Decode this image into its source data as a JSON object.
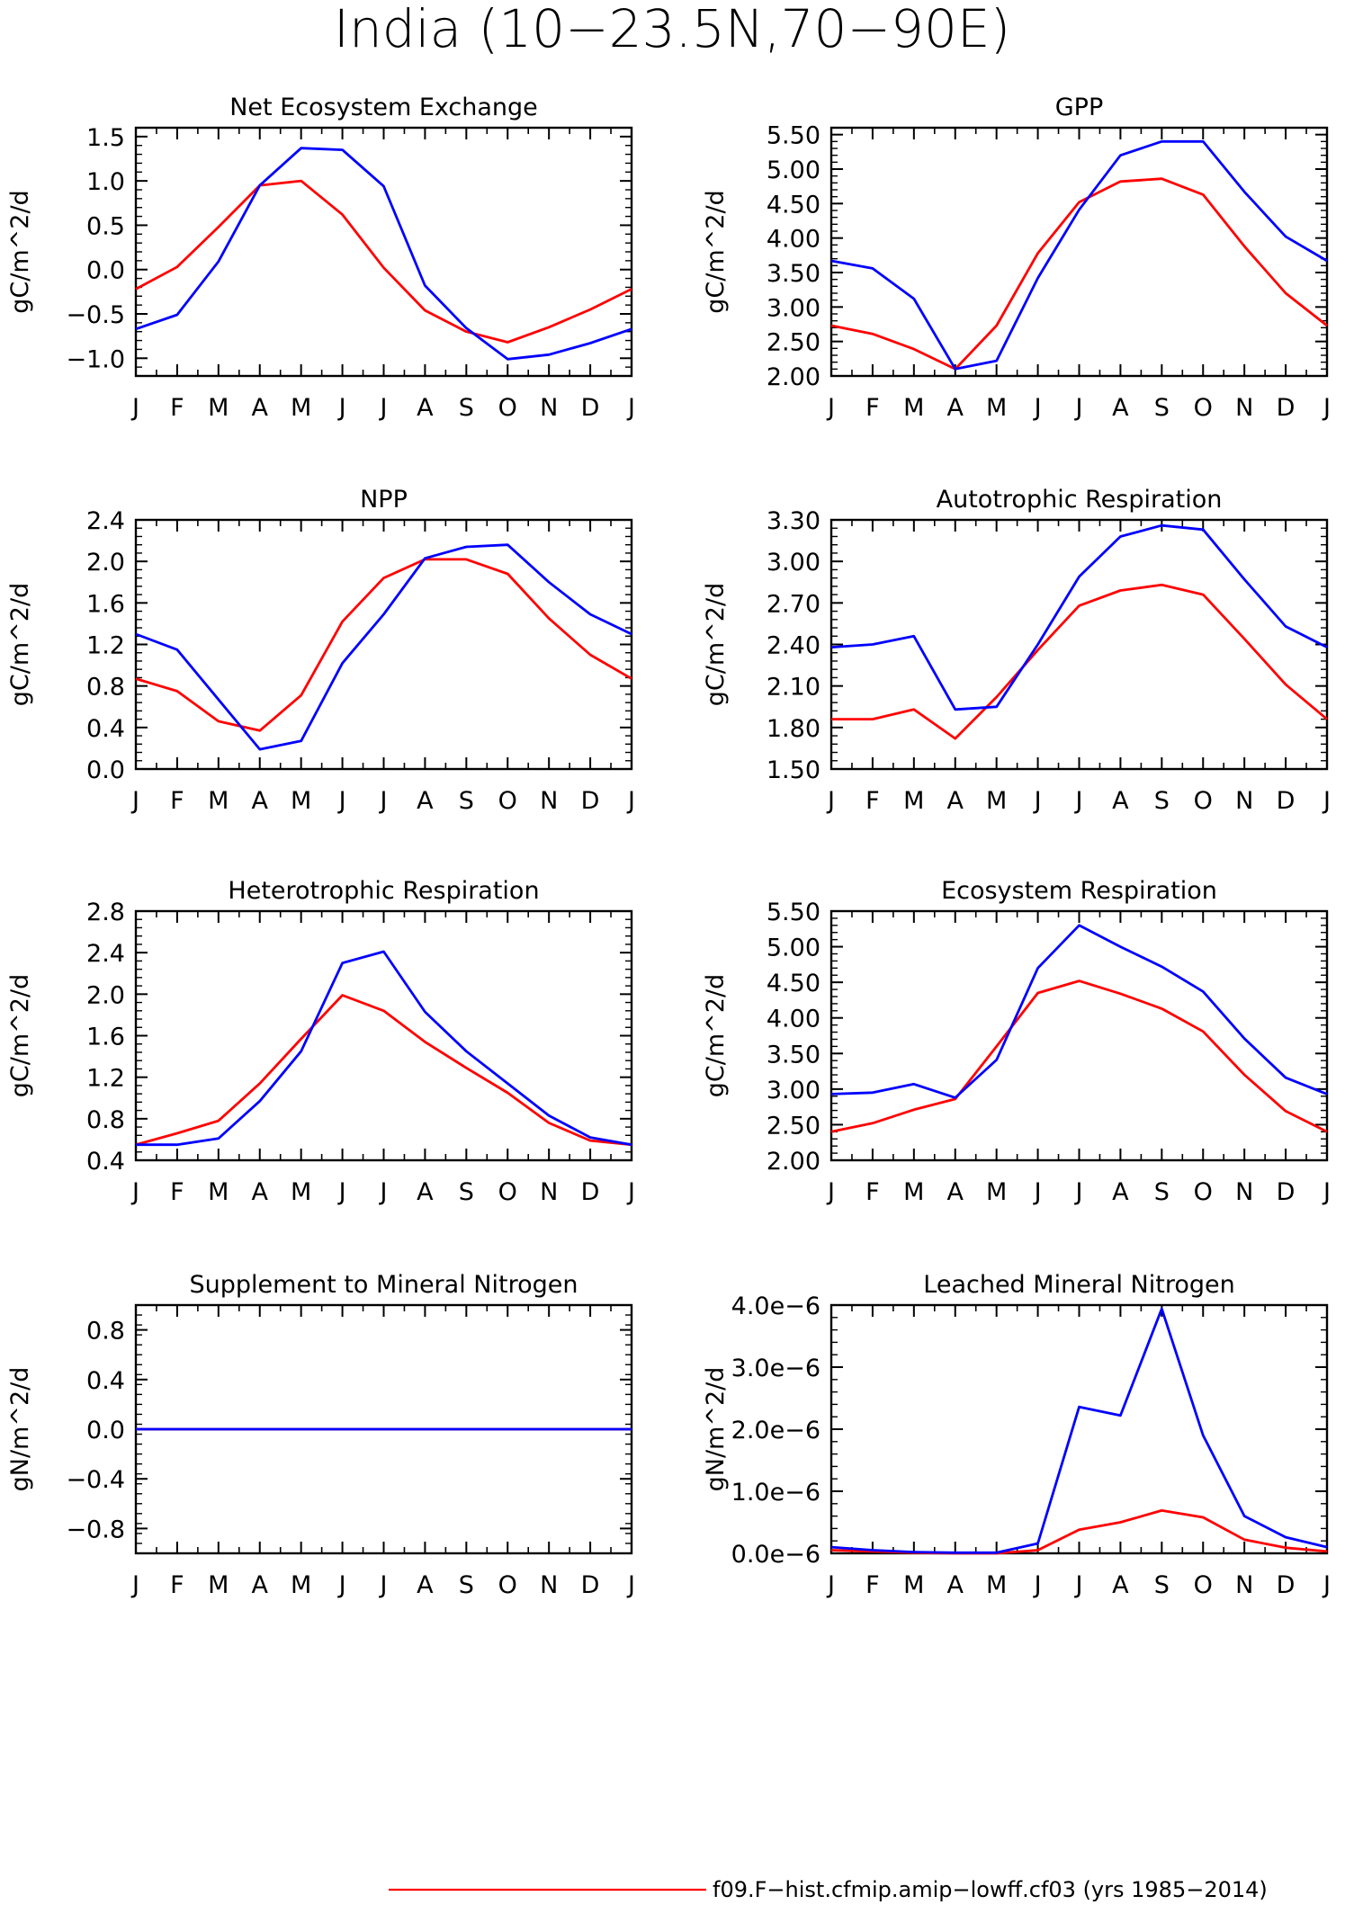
{
  "figure": {
    "title": "India (10−23.5N,70−90E)",
    "colors": {
      "model_a": "#ff0000",
      "model_b": "#0000ff",
      "axis": "#000000"
    },
    "legend": {
      "placement": "bottom-center",
      "label": "f09.F−hist.cfmip.amip−lowff.cf03 (yrs 1985−2014)"
    }
  },
  "chart_data": [
    {
      "type": "line",
      "title": "Net Ecosystem Exchange",
      "ylabel": "gC/m^2/d",
      "categories": [
        "J",
        "F",
        "M",
        "A",
        "M",
        "J",
        "J",
        "A",
        "S",
        "O",
        "N",
        "D",
        "J"
      ],
      "ylim": [
        -1.2,
        1.6
      ],
      "yticks": [
        1.5,
        1.0,
        0.5,
        0.0,
        -0.5,
        -1.0
      ],
      "ytick_labels": [
        "1.5",
        "1.0",
        "0.5",
        "0.0",
        "−0.5",
        "−1.0"
      ],
      "series": [
        {
          "values": [
            -0.22,
            0.03,
            0.48,
            0.95,
            1.0,
            0.62,
            0.02,
            -0.46,
            -0.7,
            -0.82,
            -0.65,
            -0.45,
            -0.22
          ]
        },
        {
          "values": [
            -0.67,
            -0.51,
            0.09,
            0.95,
            1.37,
            1.35,
            0.94,
            -0.18,
            -0.66,
            -1.01,
            -0.96,
            -0.83,
            -0.67
          ]
        }
      ]
    },
    {
      "type": "line",
      "title": "GPP",
      "ylabel": "gC/m^2/d",
      "categories": [
        "J",
        "F",
        "M",
        "A",
        "M",
        "J",
        "J",
        "A",
        "S",
        "O",
        "N",
        "D",
        "J"
      ],
      "ylim": [
        2.0,
        5.6
      ],
      "yticks": [
        5.5,
        5.0,
        4.5,
        4.0,
        3.5,
        3.0,
        2.5,
        2.0
      ],
      "ytick_labels": [
        "5.50",
        "5.00",
        "4.50",
        "4.00",
        "3.50",
        "3.00",
        "2.50",
        "2.00"
      ],
      "series": [
        {
          "values": [
            2.73,
            2.61,
            2.39,
            2.1,
            2.73,
            3.78,
            4.52,
            4.82,
            4.86,
            4.63,
            3.88,
            3.2,
            2.73
          ]
        },
        {
          "values": [
            3.67,
            3.56,
            3.12,
            2.1,
            2.22,
            3.42,
            4.41,
            5.2,
            5.4,
            5.4,
            4.67,
            4.02,
            3.67
          ]
        }
      ]
    },
    {
      "type": "line",
      "title": "NPP",
      "ylabel": "gC/m^2/d",
      "categories": [
        "J",
        "F",
        "M",
        "A",
        "M",
        "J",
        "J",
        "A",
        "S",
        "O",
        "N",
        "D",
        "J"
      ],
      "ylim": [
        0.0,
        2.4
      ],
      "yticks": [
        2.4,
        2.0,
        1.6,
        1.2,
        0.8,
        0.4,
        0.0
      ],
      "ytick_labels": [
        "2.4",
        "2.0",
        "1.6",
        "1.2",
        "0.8",
        "0.4",
        "0.0"
      ],
      "series": [
        {
          "values": [
            0.87,
            0.75,
            0.46,
            0.37,
            0.71,
            1.42,
            1.84,
            2.02,
            2.02,
            1.88,
            1.45,
            1.1,
            0.87
          ]
        },
        {
          "values": [
            1.3,
            1.15,
            0.67,
            0.19,
            0.27,
            1.02,
            1.49,
            2.03,
            2.14,
            2.16,
            1.8,
            1.49,
            1.3
          ]
        }
      ]
    },
    {
      "type": "line",
      "title": "Autotrophic Respiration",
      "ylabel": "gC/m^2/d",
      "categories": [
        "J",
        "F",
        "M",
        "A",
        "M",
        "J",
        "J",
        "A",
        "S",
        "O",
        "N",
        "D",
        "J"
      ],
      "ylim": [
        1.5,
        3.3
      ],
      "yticks": [
        3.3,
        3.0,
        2.7,
        2.4,
        2.1,
        1.8,
        1.5
      ],
      "ytick_labels": [
        "3.30",
        "3.00",
        "2.70",
        "2.40",
        "2.10",
        "1.80",
        "1.50"
      ],
      "series": [
        {
          "values": [
            1.86,
            1.86,
            1.93,
            1.72,
            2.02,
            2.36,
            2.68,
            2.79,
            2.83,
            2.76,
            2.44,
            2.11,
            1.86
          ]
        },
        {
          "values": [
            2.38,
            2.4,
            2.46,
            1.93,
            1.95,
            2.4,
            2.89,
            3.18,
            3.26,
            3.23,
            2.87,
            2.53,
            2.38
          ]
        }
      ]
    },
    {
      "type": "line",
      "title": "Heterotrophic Respiration",
      "ylabel": "gC/m^2/d",
      "categories": [
        "J",
        "F",
        "M",
        "A",
        "M",
        "J",
        "J",
        "A",
        "S",
        "O",
        "N",
        "D",
        "J"
      ],
      "ylim": [
        0.4,
        2.8
      ],
      "yticks": [
        2.8,
        2.4,
        2.0,
        1.6,
        1.2,
        0.8,
        0.4
      ],
      "ytick_labels": [
        "2.8",
        "2.4",
        "2.0",
        "1.6",
        "1.2",
        "0.8",
        "0.4"
      ],
      "series": [
        {
          "values": [
            0.55,
            0.66,
            0.78,
            1.14,
            1.57,
            1.99,
            1.84,
            1.54,
            1.29,
            1.05,
            0.76,
            0.59,
            0.55
          ]
        },
        {
          "values": [
            0.55,
            0.55,
            0.61,
            0.97,
            1.45,
            2.3,
            2.41,
            1.83,
            1.45,
            1.14,
            0.83,
            0.62,
            0.55
          ]
        }
      ]
    },
    {
      "type": "line",
      "title": "Ecosystem Respiration",
      "ylabel": "gC/m^2/d",
      "categories": [
        "J",
        "F",
        "M",
        "A",
        "M",
        "J",
        "J",
        "A",
        "S",
        "O",
        "N",
        "D",
        "J"
      ],
      "ylim": [
        2.0,
        5.5
      ],
      "yticks": [
        5.5,
        5.0,
        4.5,
        4.0,
        3.5,
        3.0,
        2.5,
        2.0
      ],
      "ytick_labels": [
        "5.50",
        "5.00",
        "4.50",
        "4.00",
        "3.50",
        "3.00",
        "2.50",
        "2.00"
      ],
      "series": [
        {
          "values": [
            2.4,
            2.52,
            2.71,
            2.86,
            3.6,
            4.35,
            4.52,
            4.34,
            4.13,
            3.81,
            3.2,
            2.69,
            2.4
          ]
        },
        {
          "values": [
            2.93,
            2.95,
            3.07,
            2.88,
            3.41,
            4.7,
            5.3,
            5.0,
            4.72,
            4.37,
            3.71,
            3.16,
            2.93
          ]
        }
      ]
    },
    {
      "type": "line",
      "title": "Supplement to Mineral Nitrogen",
      "ylabel": "gN/m^2/d",
      "categories": [
        "J",
        "F",
        "M",
        "A",
        "M",
        "J",
        "J",
        "A",
        "S",
        "O",
        "N",
        "D",
        "J"
      ],
      "ylim": [
        -1.0,
        1.0
      ],
      "yticks": [
        0.8,
        0.4,
        0.0,
        -0.4,
        -0.8
      ],
      "ytick_labels": [
        "0.8",
        "0.4",
        "0.0",
        "−0.4",
        "−0.8"
      ],
      "series": [
        {
          "values": [
            0,
            0,
            0,
            0,
            0,
            0,
            0,
            0,
            0,
            0,
            0,
            0,
            0
          ]
        },
        {
          "values": [
            0,
            0,
            0,
            0,
            0,
            0,
            0,
            0,
            0,
            0,
            0,
            0,
            0
          ]
        }
      ]
    },
    {
      "type": "line",
      "title": "Leached Mineral Nitrogen",
      "ylabel": "gN/m^2/d",
      "categories": [
        "J",
        "F",
        "M",
        "A",
        "M",
        "J",
        "J",
        "A",
        "S",
        "O",
        "N",
        "D",
        "J"
      ],
      "ylim": [
        0.0,
        4e-06
      ],
      "yticks": [
        4e-06,
        3e-06,
        2e-06,
        1e-06,
        0.0
      ],
      "ytick_labels": [
        "4.0e−6",
        "3.0e−6",
        "2.0e−6",
        "1.0e−6",
        "0.0e−6"
      ],
      "series": [
        {
          "values": [
            5e-08,
            3e-08,
            1e-08,
            0.0,
            0.0,
            5e-08,
            3.8e-07,
            5e-07,
            6.9e-07,
            5.8e-07,
            2.2e-07,
            9e-08,
            3e-08
          ]
        },
        {
          "values": [
            1e-07,
            5e-08,
            2e-08,
            1e-08,
            1e-08,
            1.6e-07,
            2.36e-06,
            2.22e-06,
            3.94e-06,
            1.9e-06,
            6e-07,
            2.6e-07,
            1e-07
          ]
        }
      ]
    }
  ]
}
